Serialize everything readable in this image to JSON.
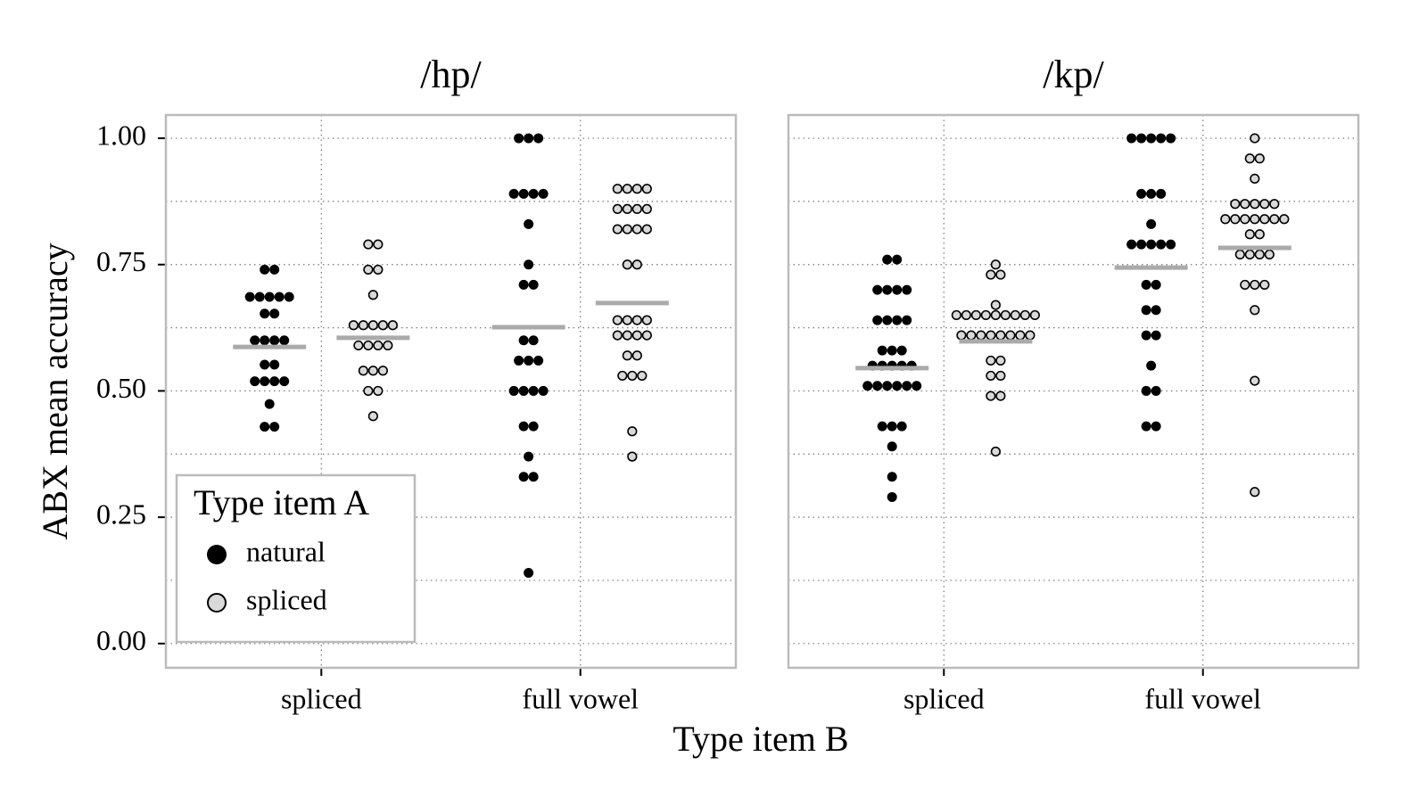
{
  "xlabel": "Type item B",
  "ylabel": "ABX mean accuracy",
  "legend": {
    "title": "Type item A"
  },
  "chart_data": [
    {
      "type": "dotplot",
      "title": "/hp/",
      "categories": [
        "spliced",
        "full vowel"
      ],
      "ylim": [
        -0.048,
        1.046
      ],
      "yticks": [
        {
          "value": 0,
          "label": "0.00"
        },
        {
          "value": 0.25,
          "label": "0.25"
        },
        {
          "value": 0.5,
          "label": "0.50"
        },
        {
          "value": 0.75,
          "label": "0.75"
        },
        {
          "value": 1,
          "label": "1.00"
        }
      ],
      "minor_yticks": [
        0.125,
        0.375,
        0.625,
        0.875
      ],
      "grid": true,
      "series": [
        {
          "name": "natural",
          "color": "#000000",
          "values": [
            [
              0.74,
              0.74,
              0.686,
              0.686,
              0.686,
              0.686,
              0.686,
              0.653,
              0.653,
              0.6,
              0.6,
              0.6,
              0.6,
              0.552,
              0.552,
              0.519,
              0.519,
              0.519,
              0.519,
              0.474,
              0.429,
              0.429
            ],
            [
              1,
              1,
              1,
              0.89,
              0.89,
              0.89,
              0.89,
              0.83,
              0.75,
              0.71,
              0.71,
              0.6,
              0.6,
              0.56,
              0.56,
              0.56,
              0.5,
              0.5,
              0.5,
              0.5,
              0.43,
              0.43,
              0.37,
              0.33,
              0.33,
              0.14
            ]
          ],
          "means": [
            0.587,
            0.626
          ]
        },
        {
          "name": "spliced",
          "color": "#d9d9d9",
          "values": [
            [
              0.79,
              0.79,
              0.74,
              0.74,
              0.69,
              0.63,
              0.63,
              0.63,
              0.63,
              0.63,
              0.59,
              0.59,
              0.59,
              0.59,
              0.54,
              0.54,
              0.54,
              0.5,
              0.5,
              0.45
            ],
            [
              0.9,
              0.9,
              0.9,
              0.9,
              0.86,
              0.86,
              0.86,
              0.86,
              0.82,
              0.82,
              0.82,
              0.82,
              0.75,
              0.75,
              0.64,
              0.64,
              0.64,
              0.64,
              0.61,
              0.61,
              0.61,
              0.61,
              0.57,
              0.57,
              0.53,
              0.53,
              0.53,
              0.42,
              0.37
            ]
          ],
          "means": [
            0.605,
            0.674
          ]
        }
      ]
    },
    {
      "type": "dotplot",
      "title": "/kp/",
      "categories": [
        "spliced",
        "full vowel"
      ],
      "ylim": [
        -0.048,
        1.046
      ],
      "yticks": [
        {
          "value": 0,
          "label": "0.00"
        },
        {
          "value": 0.25,
          "label": "0.25"
        },
        {
          "value": 0.5,
          "label": "0.50"
        },
        {
          "value": 0.75,
          "label": "0.75"
        },
        {
          "value": 1,
          "label": "1.00"
        }
      ],
      "minor_yticks": [
        0.125,
        0.375,
        0.625,
        0.875
      ],
      "grid": true,
      "series": [
        {
          "name": "natural",
          "color": "#000000",
          "values": [
            [
              0.76,
              0.76,
              0.7,
              0.7,
              0.7,
              0.7,
              0.64,
              0.64,
              0.64,
              0.64,
              0.58,
              0.58,
              0.58,
              0.55,
              0.55,
              0.55,
              0.55,
              0.55,
              0.51,
              0.51,
              0.51,
              0.51,
              0.51,
              0.51,
              0.43,
              0.43,
              0.43,
              0.39,
              0.33,
              0.29
            ],
            [
              1,
              1,
              1,
              1,
              1,
              0.89,
              0.89,
              0.89,
              0.83,
              0.79,
              0.79,
              0.79,
              0.79,
              0.79,
              0.71,
              0.71,
              0.66,
              0.66,
              0.61,
              0.61,
              0.55,
              0.5,
              0.5,
              0.43,
              0.43
            ]
          ],
          "means": [
            0.545,
            0.744
          ]
        },
        {
          "name": "spliced",
          "color": "#d9d9d9",
          "values": [
            [
              0.75,
              0.73,
              0.73,
              0.67,
              0.65,
              0.65,
              0.65,
              0.65,
              0.65,
              0.65,
              0.65,
              0.65,
              0.65,
              0.61,
              0.61,
              0.61,
              0.61,
              0.61,
              0.61,
              0.61,
              0.61,
              0.56,
              0.56,
              0.53,
              0.53,
              0.49,
              0.49,
              0.38
            ],
            [
              1,
              0.96,
              0.96,
              0.92,
              0.87,
              0.87,
              0.87,
              0.87,
              0.87,
              0.84,
              0.84,
              0.84,
              0.84,
              0.84,
              0.84,
              0.84,
              0.81,
              0.81,
              0.77,
              0.77,
              0.77,
              0.77,
              0.71,
              0.71,
              0.71,
              0.66,
              0.52,
              0.3
            ]
          ],
          "means": [
            0.598,
            0.783
          ]
        }
      ]
    }
  ]
}
